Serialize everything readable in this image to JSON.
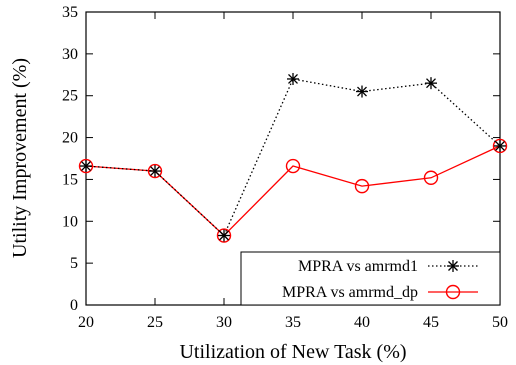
{
  "chart_data": {
    "type": "line",
    "title": "",
    "xlabel": "Utilization of New Task (%)",
    "ylabel": "Utility Improvement (%)",
    "x": [
      20,
      25,
      30,
      35,
      40,
      45,
      50
    ],
    "xlim": [
      20,
      50
    ],
    "ylim": [
      0,
      35
    ],
    "xticks": [
      "20",
      "25",
      "30",
      "35",
      "40",
      "45",
      "50"
    ],
    "yticks": [
      "0",
      "5",
      "10",
      "15",
      "20",
      "25",
      "30",
      "35"
    ],
    "grid": false,
    "legend_position": "bottom-right",
    "series": [
      {
        "name": "MPRA vs amrmd1",
        "values": [
          16.6,
          16.0,
          8.3,
          27.0,
          25.5,
          26.5,
          19.0
        ],
        "color": "#000000",
        "line_style": "dotted",
        "marker": "asterisk"
      },
      {
        "name": "MPRA vs amrmd_dp",
        "values": [
          16.6,
          16.0,
          8.3,
          16.6,
          14.2,
          15.2,
          19.0
        ],
        "color": "#ff0000",
        "line_style": "solid",
        "marker": "circle"
      }
    ]
  }
}
